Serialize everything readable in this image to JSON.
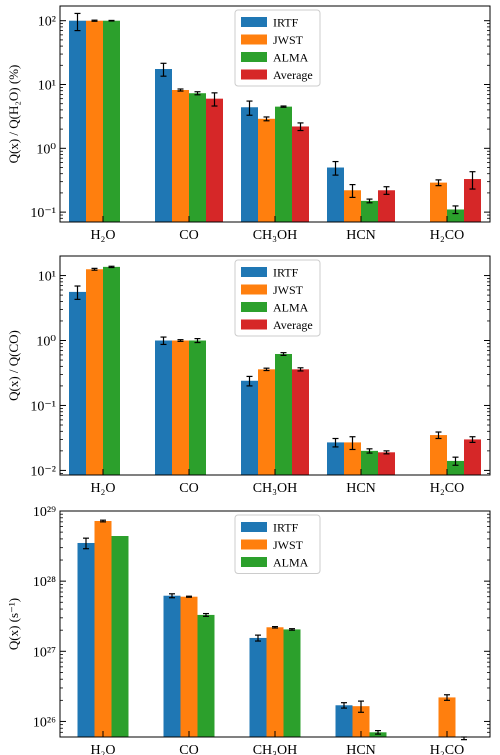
{
  "colors": {
    "IRTF": "#1f77b4",
    "JWST": "#ff7f0e",
    "ALMA": "#2ca02c",
    "Average": "#d62728"
  },
  "chart_data": [
    {
      "type": "bar",
      "yscale": "log",
      "ylim": [
        0.07,
        170
      ],
      "ylabel": "Q(x) / Q(H₂O) (%)",
      "yticks": [
        {
          "value": 0.1,
          "label": "10⁻¹"
        },
        {
          "value": 1,
          "label": "10⁰"
        },
        {
          "value": 10,
          "label": "10¹"
        },
        {
          "value": 100,
          "label": "10²"
        }
      ],
      "categories": [
        "H₂O",
        "CO",
        "CH₃OH",
        "HCN",
        "H₂CO"
      ],
      "legend_position": "upper-center",
      "series": [
        {
          "name": "IRTF",
          "values": [
            100,
            17.5,
            4.4,
            0.5,
            null
          ],
          "err_low": [
            30,
            4,
            1.1,
            0.12,
            null
          ],
          "err_high": [
            30,
            4,
            1.1,
            0.12,
            null
          ]
        },
        {
          "name": "JWST",
          "values": [
            100,
            8.2,
            2.9,
            0.22,
            0.29
          ],
          "err_low": [
            2,
            0.3,
            0.2,
            0.05,
            0.03
          ],
          "err_high": [
            2,
            0.3,
            0.2,
            0.05,
            0.03
          ]
        },
        {
          "name": "ALMA",
          "values": [
            100,
            7.3,
            4.5,
            0.15,
            0.11
          ],
          "err_low": [
            1,
            0.4,
            0.1,
            0.01,
            0.015
          ],
          "err_high": [
            1,
            0.4,
            0.1,
            0.01,
            0.015
          ]
        },
        {
          "name": "Average",
          "values": [
            null,
            6.0,
            2.2,
            0.22,
            0.33
          ],
          "err_low": [
            null,
            1.4,
            0.3,
            0.03,
            0.1
          ],
          "err_high": [
            null,
            1.4,
            0.3,
            0.03,
            0.1
          ]
        }
      ]
    },
    {
      "type": "bar",
      "yscale": "log",
      "ylim": [
        0.0085,
        20
      ],
      "ylabel": "Q(x) / Q(CO)",
      "yticks": [
        {
          "value": 0.01,
          "label": "10⁻²"
        },
        {
          "value": 0.1,
          "label": "10⁻¹"
        },
        {
          "value": 1,
          "label": "10⁰"
        },
        {
          "value": 10,
          "label": "10¹"
        }
      ],
      "categories": [
        "H₂O",
        "CO",
        "CH₃OH",
        "HCN",
        "H₂CO"
      ],
      "legend_position": "upper-center",
      "series": [
        {
          "name": "IRTF",
          "values": [
            5.6,
            1.0,
            0.24,
            0.027,
            null
          ],
          "err_low": [
            1.3,
            0.13,
            0.04,
            0.004,
            null
          ],
          "err_high": [
            1.3,
            0.13,
            0.04,
            0.004,
            null
          ]
        },
        {
          "name": "JWST",
          "values": [
            12.5,
            1.0,
            0.36,
            0.027,
            0.035
          ],
          "err_low": [
            0.4,
            0.03,
            0.015,
            0.006,
            0.004
          ],
          "err_high": [
            0.4,
            0.03,
            0.015,
            0.006,
            0.004
          ]
        },
        {
          "name": "ALMA",
          "values": [
            13.6,
            1.0,
            0.62,
            0.02,
            0.014
          ],
          "err_low": [
            0.3,
            0.07,
            0.03,
            0.0015,
            0.002
          ],
          "err_high": [
            0.3,
            0.07,
            0.03,
            0.0015,
            0.002
          ]
        },
        {
          "name": "Average",
          "values": [
            null,
            null,
            0.36,
            0.019,
            0.03
          ],
          "err_low": [
            null,
            null,
            0.02,
            0.001,
            0.003
          ],
          "err_high": [
            null,
            null,
            0.02,
            0.001,
            0.003
          ]
        }
      ]
    },
    {
      "type": "bar",
      "yscale": "log",
      "ylim": [
        6e+25,
        1e+29
      ],
      "ylabel": "Q(x) (s⁻¹)",
      "yticks": [
        {
          "value": 1e+26,
          "label": "10²⁶"
        },
        {
          "value": 1e+27,
          "label": "10²⁷"
        },
        {
          "value": 1e+28,
          "label": "10²⁸"
        },
        {
          "value": 1e+29,
          "label": "10²⁹"
        }
      ],
      "categories": [
        "H₂O",
        "CO",
        "CH₃OH",
        "HCN",
        "H₂CO"
      ],
      "legend_position": "upper-center",
      "series": [
        {
          "name": "IRTF",
          "values": [
            3.5e+28,
            6.2e+27,
            1.55e+27,
            1.7e+26,
            null
          ],
          "err_low": [
            6e+27,
            4e+26,
            1.5e+26,
            1.5e+25,
            null
          ],
          "err_high": [
            6e+27,
            4e+26,
            1.5e+26,
            1.5e+25,
            null
          ]
        },
        {
          "name": "JWST",
          "values": [
            7.2e+28,
            6e+27,
            2.2e+27,
            1.65e+26,
            2.2e+26
          ],
          "err_low": [
            2e+27,
            1e+26,
            5e+25,
            3e+25,
            2e+25
          ],
          "err_high": [
            2e+27,
            1e+26,
            5e+25,
            3e+25,
            2e+25
          ]
        },
        {
          "name": "ALMA",
          "values": [
            4.4e+28,
            3.3e+27,
            2.05e+27,
            7e+25,
            5e+25
          ],
          "err_low": [
            0,
            1.5e+26,
            5e+25,
            4e+24,
            5e+24
          ],
          "err_high": [
            0,
            1.5e+26,
            5e+25,
            4e+24,
            5e+24
          ]
        }
      ]
    }
  ]
}
